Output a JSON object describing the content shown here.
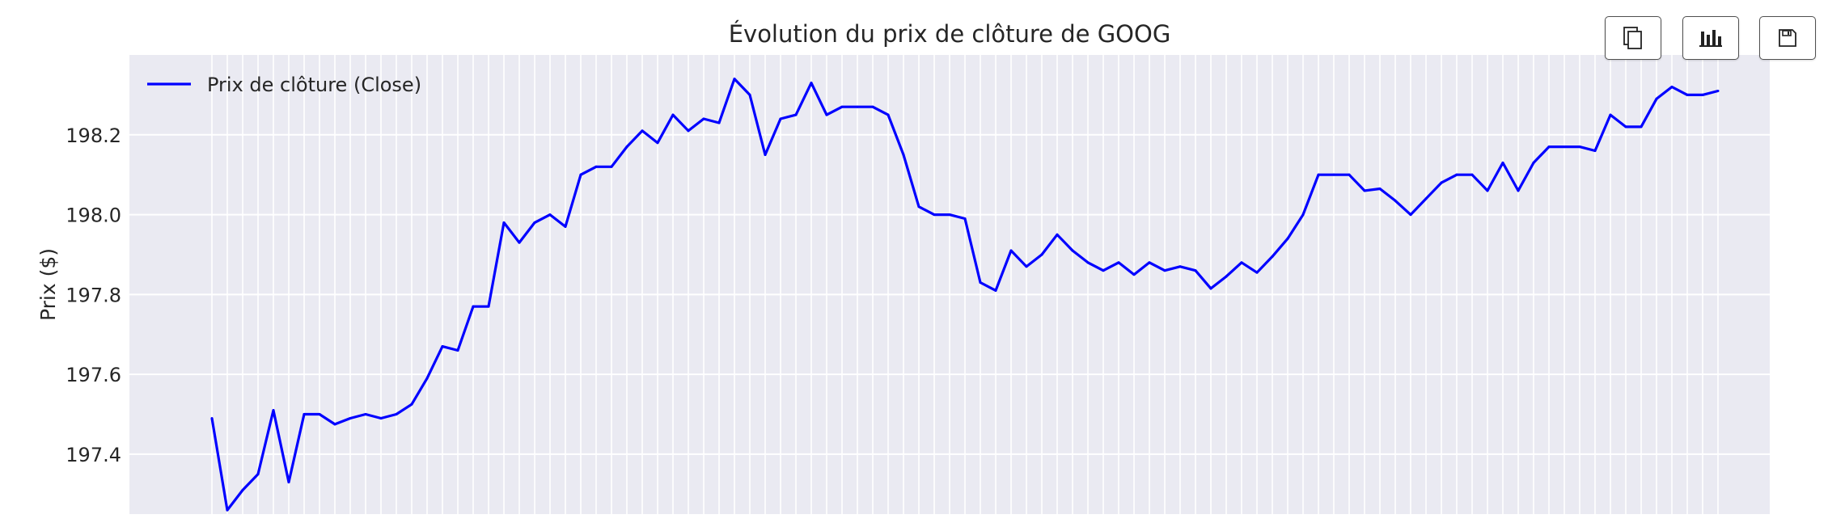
{
  "chart_data": {
    "type": "line",
    "title": "Évolution du prix de clôture de GOOG",
    "xlabel": "",
    "ylabel": "Prix ($)",
    "ylim": [
      197.25,
      198.4
    ],
    "yticks": [
      197.4,
      197.6,
      197.8,
      198.0,
      198.2
    ],
    "ytick_labels": [
      "197.4",
      "197.6",
      "197.8",
      "198.0",
      "198.2"
    ],
    "grid": true,
    "legend_position": "top-left",
    "series": [
      {
        "name": "Prix de clôture (Close)",
        "color": "#0000ff",
        "x": [
          0,
          1,
          2,
          3,
          4,
          5,
          6,
          7,
          8,
          9,
          10,
          11,
          12,
          13,
          14,
          15,
          16,
          17,
          18,
          19,
          20,
          21,
          22,
          23,
          24,
          25,
          26,
          27,
          28,
          29,
          30,
          31,
          32,
          33,
          34,
          35,
          36,
          37,
          38,
          39,
          40,
          41,
          42,
          43,
          44,
          45,
          46,
          47,
          48,
          49,
          50,
          51,
          52,
          53,
          54,
          55,
          56,
          57,
          58,
          59,
          60,
          61,
          62,
          63,
          64,
          65,
          66,
          67,
          68,
          69,
          70,
          71,
          72,
          73,
          74,
          75,
          76,
          77,
          78,
          79,
          80,
          81,
          82,
          83,
          84,
          85,
          86,
          87,
          88,
          89,
          90,
          91,
          92,
          93,
          94,
          95,
          96,
          97,
          98
        ],
        "values": [
          197.49,
          197.26,
          197.31,
          197.35,
          197.51,
          197.33,
          197.5,
          197.5,
          197.475,
          197.49,
          197.5,
          197.49,
          197.5,
          197.525,
          197.59,
          197.67,
          197.66,
          197.77,
          197.77,
          197.98,
          197.93,
          197.98,
          198.0,
          197.97,
          198.1,
          198.12,
          198.12,
          198.17,
          198.21,
          198.18,
          198.25,
          198.21,
          198.24,
          198.23,
          198.34,
          198.3,
          198.15,
          198.24,
          198.25,
          198.33,
          198.25,
          198.27,
          198.27,
          198.27,
          198.25,
          198.15,
          198.02,
          198.0,
          198.0,
          197.99,
          197.83,
          197.81,
          197.91,
          197.87,
          197.9,
          197.95,
          197.91,
          197.88,
          197.86,
          197.88,
          197.85,
          197.88,
          197.86,
          197.87,
          197.86,
          197.815,
          197.845,
          197.88,
          197.855,
          197.895,
          197.94,
          198.0,
          198.1,
          198.1,
          198.1,
          198.06,
          198.065,
          198.035,
          198.0,
          198.04,
          198.08,
          198.1,
          198.1,
          198.06,
          198.13,
          198.06,
          198.13,
          198.17,
          198.17,
          198.17,
          198.16,
          198.25,
          198.22,
          198.22,
          198.29,
          198.32,
          198.3,
          198.3,
          198.31
        ]
      }
    ]
  },
  "toolbar": [
    {
      "icon": "copy-icon",
      "name": "copy-button"
    },
    {
      "icon": "bar-chart-icon",
      "name": "chart-view-button"
    },
    {
      "icon": "save-icon",
      "name": "save-button"
    }
  ],
  "colors": {
    "plot_background": "#eaeaf2",
    "grid": "#ffffff",
    "text": "#262626",
    "line": "#0000ff"
  }
}
